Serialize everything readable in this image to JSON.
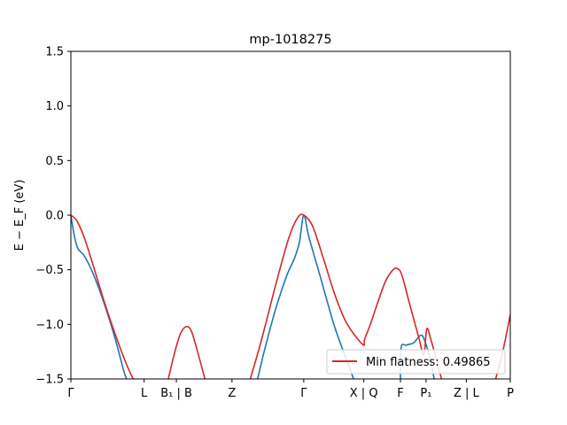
{
  "chart_data": {
    "type": "line",
    "title": "mp-1018275",
    "xlabel": "",
    "ylabel": "E − E_F (eV)",
    "ylim": [
      -1.5,
      1.5
    ],
    "xlim": [
      0,
      6
    ],
    "grid": false,
    "legend_placement": "lower-right",
    "yticks": [
      {
        "value": 1.5,
        "label": "1.5"
      },
      {
        "value": 1.0,
        "label": "1.0"
      },
      {
        "value": 0.5,
        "label": "0.5"
      },
      {
        "value": 0.0,
        "label": "0.0"
      },
      {
        "value": -0.5,
        "label": "−0.5"
      },
      {
        "value": -1.0,
        "label": "−1.0"
      },
      {
        "value": -1.5,
        "label": "−1.5"
      }
    ],
    "xticks": [
      {
        "value": 0.0,
        "label": "Γ"
      },
      {
        "value": 1.0,
        "label": "L"
      },
      {
        "value": 1.44,
        "label": "B₁ | B"
      },
      {
        "value": 2.2,
        "label": "Z"
      },
      {
        "value": 3.18,
        "label": "Γ"
      },
      {
        "value": 4.0,
        "label": "X | Q"
      },
      {
        "value": 4.5,
        "label": "F"
      },
      {
        "value": 4.85,
        "label": "P₁"
      },
      {
        "value": 5.4,
        "label": "Z | L"
      },
      {
        "value": 6.0,
        "label": "P"
      }
    ],
    "series": [
      {
        "color": "#1f77b4",
        "segments": [
          [
            [
              0.0,
              0.0
            ],
            [
              0.05,
              -0.2
            ],
            [
              0.1,
              -0.31
            ],
            [
              0.18,
              -0.37
            ],
            [
              0.3,
              -0.53
            ],
            [
              0.45,
              -0.8
            ],
            [
              0.6,
              -1.12
            ],
            [
              0.72,
              -1.42
            ],
            [
              0.76,
              -1.5
            ]
          ],
          [
            [
              2.55,
              -1.5
            ],
            [
              2.65,
              -1.22
            ],
            [
              2.8,
              -0.85
            ],
            [
              2.95,
              -0.55
            ],
            [
              3.05,
              -0.4
            ],
            [
              3.12,
              -0.25
            ],
            [
              3.18,
              0.0
            ],
            [
              3.25,
              -0.2
            ],
            [
              3.4,
              -0.55
            ],
            [
              3.6,
              -1.02
            ],
            [
              3.78,
              -1.35
            ],
            [
              3.86,
              -1.5
            ]
          ],
          [
            [
              4.5,
              -1.5
            ],
            [
              4.51,
              -1.21
            ],
            [
              4.58,
              -1.19
            ],
            [
              4.68,
              -1.17
            ],
            [
              4.73,
              -1.13
            ],
            [
              4.78,
              -1.1
            ],
            [
              4.82,
              -1.13
            ],
            [
              4.9,
              -1.3
            ],
            [
              4.96,
              -1.5
            ]
          ]
        ]
      },
      {
        "color": "#d62728",
        "name": "Min flatness: 0.49865",
        "segments": [
          [
            [
              0.0,
              0.0
            ],
            [
              0.08,
              -0.05
            ],
            [
              0.18,
              -0.2
            ],
            [
              0.3,
              -0.45
            ],
            [
              0.45,
              -0.78
            ],
            [
              0.6,
              -1.08
            ],
            [
              0.75,
              -1.35
            ],
            [
              0.85,
              -1.5
            ]
          ],
          [
            [
              1.33,
              -1.5
            ],
            [
              1.42,
              -1.25
            ],
            [
              1.5,
              -1.08
            ],
            [
              1.58,
              -1.02
            ],
            [
              1.65,
              -1.07
            ],
            [
              1.75,
              -1.3
            ],
            [
              1.83,
              -1.5
            ]
          ],
          [
            [
              2.45,
              -1.5
            ],
            [
              2.6,
              -1.15
            ],
            [
              2.8,
              -0.63
            ],
            [
              2.98,
              -0.2
            ],
            [
              3.1,
              -0.02
            ],
            [
              3.18,
              0.0
            ],
            [
              3.3,
              -0.1
            ],
            [
              3.45,
              -0.4
            ],
            [
              3.6,
              -0.72
            ],
            [
              3.75,
              -0.97
            ],
            [
              3.9,
              -1.12
            ],
            [
              4.0,
              -1.19
            ],
            [
              4.01,
              -1.14
            ],
            [
              4.1,
              -0.98
            ],
            [
              4.2,
              -0.78
            ],
            [
              4.3,
              -0.6
            ],
            [
              4.4,
              -0.5
            ],
            [
              4.46,
              -0.49
            ],
            [
              4.52,
              -0.55
            ],
            [
              4.62,
              -0.8
            ],
            [
              4.75,
              -1.12
            ],
            [
              4.82,
              -1.28
            ],
            [
              4.86,
              -1.04
            ],
            [
              4.92,
              -1.15
            ],
            [
              5.0,
              -1.34
            ],
            [
              5.06,
              -1.5
            ]
          ],
          [
            [
              5.8,
              -1.5
            ],
            [
              5.88,
              -1.3
            ],
            [
              5.95,
              -1.08
            ],
            [
              6.0,
              -0.91
            ]
          ]
        ]
      }
    ],
    "legend": [
      {
        "label": "Min flatness: 0.49865",
        "color": "#d62728"
      }
    ]
  }
}
